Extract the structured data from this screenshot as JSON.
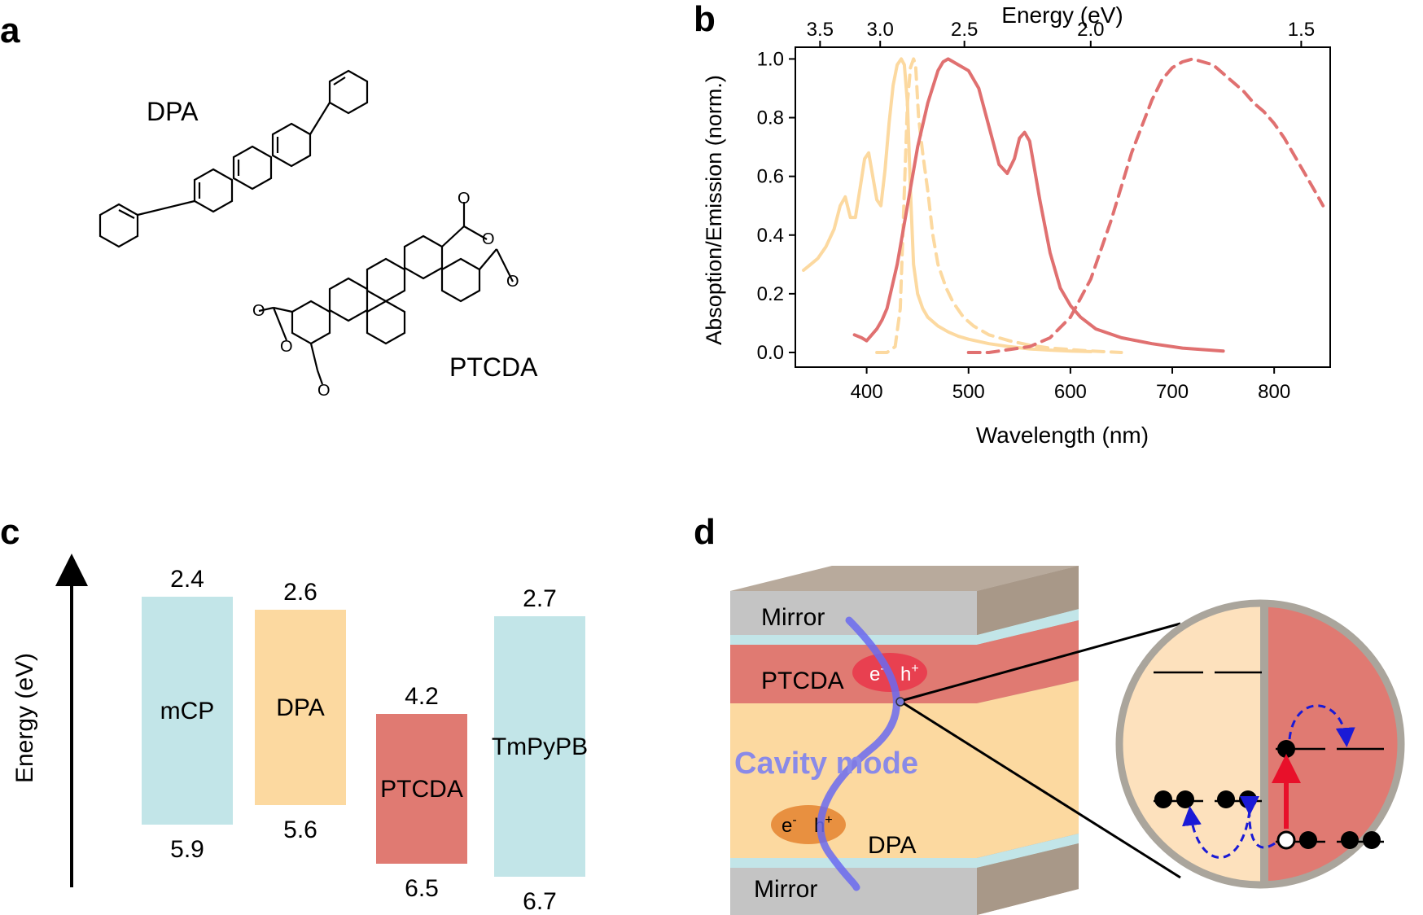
{
  "panels": {
    "a": {
      "label": "a",
      "molecules": [
        {
          "name": "DPA"
        },
        {
          "name": "PTCDA"
        }
      ],
      "atom_labels": {
        "oxygen": "O"
      }
    },
    "b": {
      "label": "b"
    },
    "c": {
      "label": "c"
    },
    "d": {
      "label": "d"
    }
  },
  "chart_data": {
    "type": "line",
    "title": "",
    "xlabel": "Wavelength (nm)",
    "ylabel": "Absoption/Emission (norm.)",
    "top_axis_label": "Energy (eV)",
    "xlim": [
      330,
      855
    ],
    "ylim": [
      -0.05,
      1.04
    ],
    "x_ticks": [
      400,
      500,
      600,
      700,
      800
    ],
    "y_ticks": [
      0.0,
      0.2,
      0.4,
      0.6,
      0.8,
      1.0
    ],
    "y_tick_labels": [
      "0.0",
      "0.2",
      "0.4",
      "0.6",
      "0.8",
      "1.0"
    ],
    "top_ticks": [
      3.5,
      3.0,
      2.5,
      2.0,
      1.5
    ],
    "top_tick_labels": [
      "3.5",
      "3.0",
      "2.5",
      "2.0",
      "1.5"
    ],
    "colors": {
      "dpa": "#fcd9a0",
      "ptcda": "#e07070"
    },
    "series": [
      {
        "name": "DPA absorption",
        "style": "solid",
        "color": "#fcd9a0",
        "x": [
          338,
          345,
          352,
          360,
          368,
          374,
          379,
          384,
          389,
          394,
          398,
          402,
          406,
          410,
          414,
          418,
          422,
          426,
          430,
          434,
          437,
          440,
          443,
          446,
          450,
          455,
          460,
          470,
          480,
          490,
          500,
          520,
          540,
          560,
          580,
          600,
          620
        ],
        "y": [
          0.28,
          0.3,
          0.32,
          0.36,
          0.42,
          0.5,
          0.53,
          0.46,
          0.46,
          0.57,
          0.66,
          0.68,
          0.6,
          0.52,
          0.5,
          0.62,
          0.78,
          0.91,
          0.98,
          1.0,
          0.98,
          0.85,
          0.55,
          0.3,
          0.2,
          0.15,
          0.12,
          0.09,
          0.07,
          0.055,
          0.045,
          0.03,
          0.02,
          0.012,
          0.008,
          0.005,
          0.003
        ]
      },
      {
        "name": "DPA emission",
        "style": "dashed",
        "color": "#fcd9a0",
        "x": [
          410,
          420,
          428,
          433,
          437,
          440,
          443,
          446,
          448,
          451,
          455,
          460,
          465,
          470,
          478,
          485,
          495,
          505,
          520,
          540,
          560,
          580,
          600,
          620,
          650
        ],
        "y": [
          0.0,
          0.0,
          0.02,
          0.15,
          0.55,
          0.85,
          0.97,
          1.0,
          0.98,
          0.8,
          0.68,
          0.55,
          0.4,
          0.3,
          0.22,
          0.17,
          0.12,
          0.09,
          0.06,
          0.04,
          0.025,
          0.015,
          0.01,
          0.005,
          0.0
        ]
      },
      {
        "name": "PTCDA absorption",
        "style": "solid",
        "color": "#e07070",
        "x": [
          388,
          395,
          400,
          405,
          410,
          415,
          420,
          430,
          440,
          450,
          460,
          470,
          475,
          480,
          485,
          490,
          500,
          510,
          520,
          530,
          538,
          545,
          550,
          555,
          560,
          565,
          570,
          580,
          590,
          600,
          610,
          625,
          650,
          680,
          710,
          750
        ],
        "y": [
          0.06,
          0.05,
          0.04,
          0.06,
          0.08,
          0.11,
          0.15,
          0.3,
          0.5,
          0.7,
          0.85,
          0.96,
          0.99,
          1.0,
          0.99,
          0.98,
          0.96,
          0.9,
          0.77,
          0.64,
          0.61,
          0.66,
          0.73,
          0.75,
          0.72,
          0.62,
          0.52,
          0.34,
          0.22,
          0.16,
          0.12,
          0.08,
          0.05,
          0.03,
          0.015,
          0.005
        ]
      },
      {
        "name": "PTCDA emission",
        "style": "dashed",
        "color": "#e07070",
        "x": [
          500,
          520,
          540,
          560,
          580,
          600,
          620,
          640,
          660,
          680,
          690,
          700,
          710,
          720,
          730,
          740,
          750,
          760,
          770,
          780,
          790,
          800,
          810,
          820,
          830,
          840,
          848
        ],
        "y": [
          0.0,
          0.0,
          0.01,
          0.02,
          0.05,
          0.12,
          0.25,
          0.45,
          0.68,
          0.86,
          0.93,
          0.97,
          0.99,
          1.0,
          0.99,
          0.98,
          0.95,
          0.92,
          0.89,
          0.85,
          0.82,
          0.78,
          0.73,
          0.67,
          0.61,
          0.55,
          0.5
        ]
      }
    ]
  },
  "energy_diagram": {
    "axis_label": "Energy (eV)",
    "levels": [
      {
        "name": "mCP",
        "lumo": "2.4",
        "homo": "5.9",
        "lumo_val": 2.4,
        "homo_val": 5.9,
        "color": "#c2e5e8"
      },
      {
        "name": "DPA",
        "lumo": "2.6",
        "homo": "5.6",
        "lumo_val": 2.6,
        "homo_val": 5.6,
        "color": "#fcd9a0"
      },
      {
        "name": "PTCDA",
        "lumo": "4.2",
        "homo": "6.5",
        "lumo_val": 4.2,
        "homo_val": 6.5,
        "color": "#e07a72"
      },
      {
        "name": "TmPyPB",
        "lumo": "2.7",
        "homo": "6.7",
        "lumo_val": 2.7,
        "homo_val": 6.7,
        "color": "#c2e5e8"
      }
    ]
  },
  "cavity": {
    "mirror_top": "Mirror",
    "mirror_bottom": "Mirror",
    "ptcda_layer": "PTCDA",
    "dpa_layer": "DPA",
    "mode_label": "Cavity  mode",
    "electron": "e",
    "hole": "h",
    "minus": "-",
    "plus": "+"
  }
}
